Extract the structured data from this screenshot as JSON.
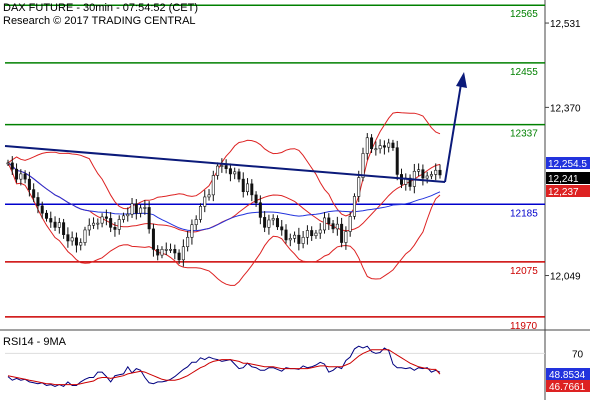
{
  "header": {
    "line1": "DAX FUTURE - 30min - 07:54:52 (CET)",
    "line2": "Research © 2017 TRADING CENTRAL"
  },
  "chart_data": [
    {
      "type": "candlestick",
      "title": "DAX FUTURE - 30min - 07:54:52 (CET)",
      "ylim": [
        11945,
        12575
      ],
      "y_ticks": [
        "12,531",
        "12,370",
        "12,049"
      ],
      "levels": [
        {
          "value": 12565,
          "label": "12565",
          "color": "#008000"
        },
        {
          "value": 12455,
          "label": "12455",
          "color": "#008000"
        },
        {
          "value": 12337,
          "label": "12337",
          "color": "#008000"
        },
        {
          "value": 12185,
          "label": "12185",
          "color": "#0000cc"
        },
        {
          "value": 12075,
          "label": "12075",
          "color": "#cc0000"
        },
        {
          "value": 11970,
          "label": "11970",
          "color": "#cc0000"
        }
      ],
      "price_tags": [
        {
          "value": 12254.5,
          "label": "12,254.5",
          "color": "#2233dd"
        },
        {
          "value": 12241,
          "label": "12,241",
          "color": "#000000"
        },
        {
          "value": 12237,
          "label": "12,237",
          "color": "#dd2222"
        }
      ],
      "close": [
        12264,
        12252,
        12233,
        12243,
        12233,
        12213,
        12198,
        12182,
        12168,
        12158,
        12151,
        12141,
        12150,
        12127,
        12115,
        12121,
        12107,
        12112,
        12136,
        12145,
        12149,
        12149,
        12161,
        12158,
        12141,
        12137,
        12156,
        12163,
        12166,
        12186,
        12168,
        12178,
        12179,
        12138,
        12099,
        12088,
        12099,
        12099,
        12099,
        12092,
        12079,
        12104,
        12122,
        12146,
        12156,
        12181,
        12199,
        12203,
        12240,
        12258,
        12259,
        12253,
        12243,
        12247,
        12233,
        12209,
        12224,
        12203,
        12188,
        12160,
        12141,
        12155,
        12158,
        12142,
        12136,
        12117,
        12120,
        12126,
        12110,
        12122,
        12135,
        12125,
        12130,
        12136,
        12159,
        12148,
        12138,
        12147,
        12112,
        12133,
        12162,
        12200,
        12236,
        12282,
        12312,
        12291,
        12291,
        12297,
        12294,
        12302,
        12293,
        12242,
        12223,
        12235,
        12219,
        12248,
        12251,
        12235,
        12239,
        12242,
        12250,
        12241
      ]
    },
    {
      "type": "line",
      "title": "RSI14 - 9MA",
      "series": [
        {
          "name": "RSI14",
          "color": "#000080",
          "values": [
            44,
            40,
            42,
            40,
            41,
            38,
            37,
            36,
            37,
            34,
            35,
            33,
            35,
            33,
            38,
            34,
            34,
            38,
            41,
            43,
            43,
            49,
            49,
            44,
            38,
            45,
            46,
            47,
            55,
            48,
            53,
            51,
            43,
            37,
            36,
            38,
            38,
            39,
            41,
            44,
            48,
            52,
            55,
            60,
            60,
            65,
            63,
            66,
            64,
            63,
            61,
            62,
            63,
            58,
            53,
            54,
            59,
            55,
            54,
            51,
            51,
            54,
            54,
            52,
            50,
            54,
            53,
            53,
            52,
            56,
            54,
            55,
            57,
            60,
            58,
            49,
            51,
            55,
            53,
            62,
            66,
            75,
            78,
            76,
            78,
            72,
            70,
            71,
            76,
            73,
            58,
            54,
            54,
            53,
            54,
            51,
            54,
            53,
            54,
            49,
            51,
            48.9
          ]
        },
        {
          "name": "9MA",
          "color": "#cc0000",
          "values": [
            45,
            44,
            43,
            42,
            41,
            40,
            39,
            38,
            37,
            36,
            36,
            35,
            35,
            35,
            35,
            35,
            35,
            36,
            37,
            38,
            39,
            42,
            43,
            43,
            42,
            43,
            44,
            45,
            47,
            48,
            49,
            50,
            49,
            47,
            45,
            43,
            41,
            40,
            40,
            40,
            41,
            43,
            45,
            48,
            51,
            54,
            56,
            59,
            61,
            62,
            63,
            63,
            63,
            62,
            61,
            59,
            59,
            58,
            57,
            56,
            55,
            55,
            55,
            54,
            53,
            53,
            53,
            53,
            53,
            53,
            53,
            54,
            55,
            56,
            56,
            55,
            55,
            55,
            55,
            57,
            59,
            63,
            67,
            70,
            72,
            74,
            74,
            74,
            74,
            74,
            71,
            68,
            65,
            62,
            59,
            57,
            55,
            54,
            53,
            52,
            52,
            46.8
          ]
        }
      ],
      "y_ticks": [
        "70"
      ],
      "value_tags": [
        {
          "value": 48.8534,
          "label": "48.8534",
          "color": "#2233dd"
        },
        {
          "value": 46.7661,
          "label": "46.7661",
          "color": "#dd2222"
        }
      ]
    }
  ]
}
